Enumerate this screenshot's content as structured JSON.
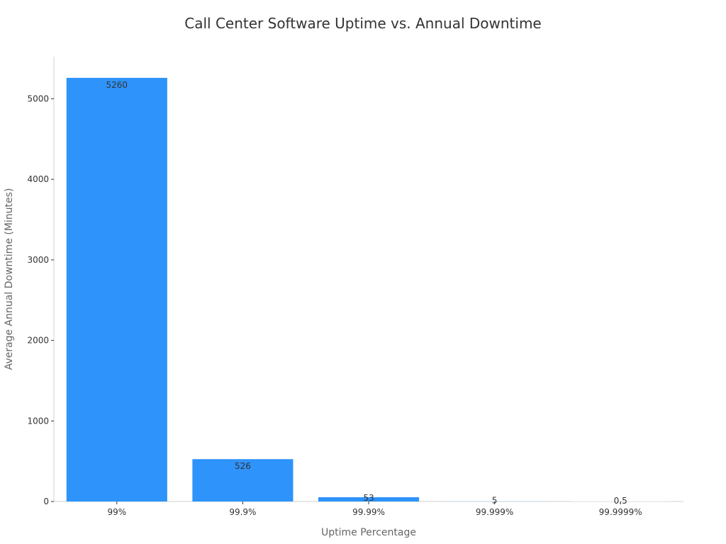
{
  "chart_data": {
    "type": "bar",
    "title": "Call Center Software Uptime vs. Annual Downtime",
    "xlabel": "Uptime Percentage",
    "ylabel": "Average Annual Downtime (Minutes)",
    "categories": [
      "99%",
      "99.9%",
      "99.99%",
      "99.999%",
      "99.9999%"
    ],
    "values": [
      5260,
      526,
      53,
      5,
      0.5
    ],
    "data_labels": [
      "5260",
      "526",
      "53",
      "5",
      "0.5"
    ],
    "ylim": [
      0,
      5523
    ],
    "yticks": [
      0,
      1000,
      2000,
      3000,
      4000,
      5000
    ],
    "grid": false,
    "colors": [
      "#2e93fa",
      "#2e93fa",
      "#2e93fa",
      "#d6e9f8",
      "#eef5fb"
    ],
    "text_color": "#333333",
    "axis_color": "#d0d0d0"
  }
}
